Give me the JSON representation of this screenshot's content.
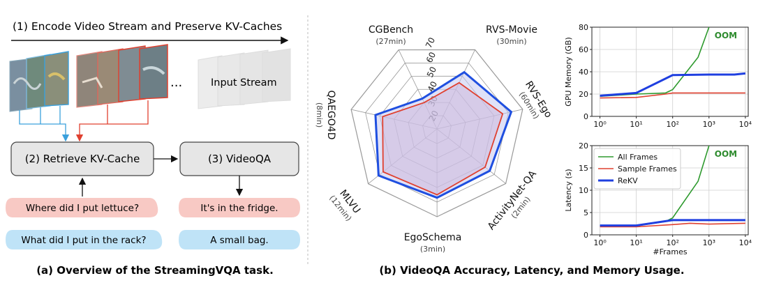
{
  "panel_a": {
    "step1": "(1) Encode Video Stream and Preserve KV-Caches",
    "ellipsis": "...",
    "input_stream": "Input Stream",
    "step2": "(2) Retrieve KV-Cache",
    "step3": "(3) VideoQA",
    "q1": "Where did I put lettuce?",
    "q2": "What did I put in the rack?",
    "a1": "It's in the fridge.",
    "a2": "A small bag.",
    "caption": "(a) Overview of the StreamingVQA task.",
    "colors": {
      "blue": "#3aa0dc",
      "red": "#e0402f",
      "bubble_red": "#f8c9c4",
      "bubble_blue": "#bfe3f7",
      "box": "#e6e6e6"
    }
  },
  "panel_b_caption": "(b) VideoQA Accuracy, Latency, and Memory Usage.",
  "chart_data": [
    {
      "type": "radar",
      "axes": [
        {
          "name": "CGBench",
          "sub": "(27min)"
        },
        {
          "name": "RVS-Movie",
          "sub": "(30min)"
        },
        {
          "name": "RVS-Ego",
          "sub": "(60min)"
        },
        {
          "name": "ActivityNet-QA",
          "sub": "(2min)"
        },
        {
          "name": "EgoSchema",
          "sub": "(3min)"
        },
        {
          "name": "MLVU",
          "sub": "(12min)"
        },
        {
          "name": "QAEGO4D",
          "sub": "(8min)"
        }
      ],
      "rings": [
        20,
        30,
        40,
        50,
        60,
        70
      ],
      "ring_labels": [
        "20",
        "30",
        "40",
        "50",
        "60",
        "70"
      ],
      "range": [
        10,
        70
      ],
      "series": [
        {
          "color": "#e0402f",
          "fill": "#d8a6c3",
          "values": [
            30,
            45,
            56,
            52,
            55,
            57,
            48
          ]
        },
        {
          "color": "#1f4fe0",
          "fill": "#c4c8f0",
          "values": [
            33,
            53,
            62,
            56,
            57,
            61,
            53
          ]
        }
      ]
    },
    {
      "type": "line",
      "ylabel": "GPU Memory (GB)",
      "xscale": "log",
      "xlim": [
        0.6,
        12000
      ],
      "ylim": [
        0,
        80
      ],
      "xticks": [
        1,
        10,
        100,
        1000,
        10000
      ],
      "xtick_labels": [
        "10⁰",
        "10¹",
        "10²",
        "10³",
        "10⁴"
      ],
      "yticks": [
        0,
        20,
        40,
        60,
        80
      ],
      "grid": true,
      "annotation": {
        "text": "OOM",
        "color": "#2e8b2e"
      },
      "series": [
        {
          "color": "#2e9a2e",
          "width": 1.6,
          "x": [
            1,
            10,
            64,
            100,
            500,
            1000
          ],
          "y": [
            18,
            20,
            21,
            24,
            53,
            80
          ]
        },
        {
          "color": "#e0402f",
          "width": 1.6,
          "x": [
            1,
            10,
            64,
            100,
            1000,
            10000
          ],
          "y": [
            16.5,
            17,
            20,
            21,
            21,
            21
          ]
        },
        {
          "color": "#1f3fe0",
          "width": 3.0,
          "x": [
            1,
            10,
            100,
            1000,
            5000,
            10000
          ],
          "y": [
            18.5,
            21,
            37,
            37.5,
            37.5,
            38.5
          ]
        }
      ]
    },
    {
      "type": "line",
      "ylabel": "Latency (s)",
      "xlabel": "#Frames",
      "xscale": "log",
      "xlim": [
        0.6,
        12000
      ],
      "ylim": [
        0,
        20
      ],
      "xticks": [
        1,
        10,
        100,
        1000,
        10000
      ],
      "xtick_labels": [
        "10⁰",
        "10¹",
        "10²",
        "10³",
        "10⁴"
      ],
      "yticks": [
        0,
        5,
        10,
        15,
        20
      ],
      "grid": true,
      "annotation": {
        "text": "OOM",
        "color": "#2e8b2e"
      },
      "legend": {
        "placement": "upper-left",
        "entries": [
          "All Frames",
          "Sample Frames",
          "ReKV"
        ]
      },
      "series": [
        {
          "name": "All Frames",
          "color": "#2e9a2e",
          "width": 1.6,
          "x": [
            1,
            10,
            64,
            100,
            500,
            1000
          ],
          "y": [
            2.0,
            2.0,
            3.0,
            3.8,
            12,
            20
          ]
        },
        {
          "name": "Sample Frames",
          "color": "#e0402f",
          "width": 1.6,
          "x": [
            1,
            10,
            100,
            300,
            1000,
            10000
          ],
          "y": [
            1.8,
            1.8,
            2.3,
            2.6,
            2.4,
            2.6
          ]
        },
        {
          "name": "ReKV",
          "color": "#1f3fe0",
          "width": 3.0,
          "x": [
            1,
            10,
            100,
            1000,
            10000
          ],
          "y": [
            2.1,
            2.1,
            3.3,
            3.3,
            3.3
          ]
        }
      ]
    }
  ]
}
